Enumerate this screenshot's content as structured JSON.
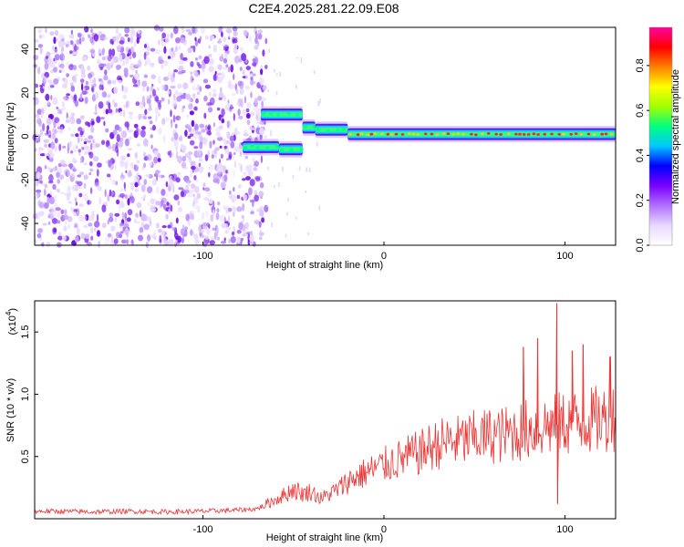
{
  "title": "C2E4.2025.281.22.09.E08",
  "chart_data": [
    {
      "type": "heatmap",
      "name": "spectrogram",
      "xlabel": "Height of straight line (km)",
      "ylabel": "Frequency (Hz)",
      "xlim": [
        -193,
        128
      ],
      "ylim": [
        -50,
        50
      ],
      "xticks": [
        -100,
        0,
        100
      ],
      "xtick_labels": [
        "-100",
        "0",
        "100"
      ],
      "yticks": [
        -40,
        -20,
        0,
        20,
        40
      ],
      "ytick_labels": [
        "-40",
        "-20",
        "0",
        "20",
        "40"
      ],
      "colorbar": {
        "label": "Normalized spectral amplitude",
        "range": [
          0,
          0.97
        ],
        "ticks": [
          0,
          0.2,
          0.4,
          0.6,
          0.8
        ],
        "tick_labels": [
          "0.0",
          "0.2",
          "0.4",
          "0.6",
          "0.8"
        ],
        "colormap": [
          "#ffffff",
          "#e8d8ff",
          "#b070ff",
          "#7a00ff",
          "#0000ff",
          "#00c8ff",
          "#00ff80",
          "#a0ff00",
          "#ffff00",
          "#ff8000",
          "#ff0000",
          "#ff00a0"
        ]
      },
      "features": {
        "noise_region_x": [
          -193,
          -65
        ],
        "noise_fraction": 0.25,
        "carrier_segments": [
          {
            "x": [
              -78,
              -58
            ],
            "freq": -5,
            "amplitude": 0.3
          },
          {
            "x": [
              -58,
              -45
            ],
            "freq": -6,
            "amplitude": 0.35
          },
          {
            "x": [
              -68,
              -45
            ],
            "freq": 10,
            "amplitude": 0.35
          },
          {
            "x": [
              -45,
              -38
            ],
            "freq": 4,
            "amplitude": 0.4
          },
          {
            "x": [
              -38,
              -20
            ],
            "freq": 3,
            "amplitude": 0.5
          },
          {
            "x": [
              -20,
              128
            ],
            "freq": 1,
            "amplitude": 0.7
          }
        ]
      }
    },
    {
      "type": "line",
      "name": "snr",
      "xlabel": "Height of straight line (km)",
      "ylabel": "SNR (10 * v/v)",
      "y_scale_label": "(x10",
      "y_scale_exp": "4",
      "y_scale_close": ")",
      "xlim": [
        -193,
        128
      ],
      "ylim": [
        0,
        17500
      ],
      "xticks": [
        -100,
        0,
        100
      ],
      "xtick_labels": [
        "-100",
        "0",
        "100"
      ],
      "yticks": [
        5000,
        10000,
        15000
      ],
      "ytick_labels": [
        "0.5",
        "1.0",
        "1.5"
      ],
      "color": "#ee3333",
      "series": [
        {
          "name": "SNR",
          "x": [
            -193,
            -180,
            -160,
            -140,
            -120,
            -100,
            -80,
            -70,
            -62,
            -55,
            -50,
            -45,
            -40,
            -35,
            -30,
            -25,
            -20,
            -15,
            -10,
            -5,
            0,
            5,
            10,
            15,
            20,
            25,
            30,
            35,
            40,
            45,
            50,
            55,
            60,
            65,
            70,
            75,
            80,
            85,
            90,
            95,
            100,
            105,
            110,
            115,
            120,
            125,
            128
          ],
          "y": [
            600,
            600,
            550,
            600,
            550,
            600,
            700,
            800,
            1400,
            1900,
            2400,
            2000,
            2200,
            1600,
            2000,
            2400,
            3000,
            3400,
            3700,
            4000,
            4300,
            4600,
            4800,
            5100,
            5300,
            5700,
            6000,
            6200,
            6200,
            6300,
            6500,
            6600,
            6700,
            6700,
            6900,
            7000,
            7200,
            7300,
            7500,
            7500,
            7700,
            7700,
            7800,
            7900,
            8000,
            8100,
            8200
          ],
          "spikes": [
            {
              "x": 95.5,
              "y": 17300
            },
            {
              "x": 96,
              "y": 1200
            },
            {
              "x": 85,
              "y": 14500
            },
            {
              "x": 110,
              "y": 14000
            },
            {
              "x": 104,
              "y": 13500
            },
            {
              "x": 77,
              "y": 13800
            },
            {
              "x": 125,
              "y": 13000
            }
          ]
        }
      ]
    }
  ]
}
